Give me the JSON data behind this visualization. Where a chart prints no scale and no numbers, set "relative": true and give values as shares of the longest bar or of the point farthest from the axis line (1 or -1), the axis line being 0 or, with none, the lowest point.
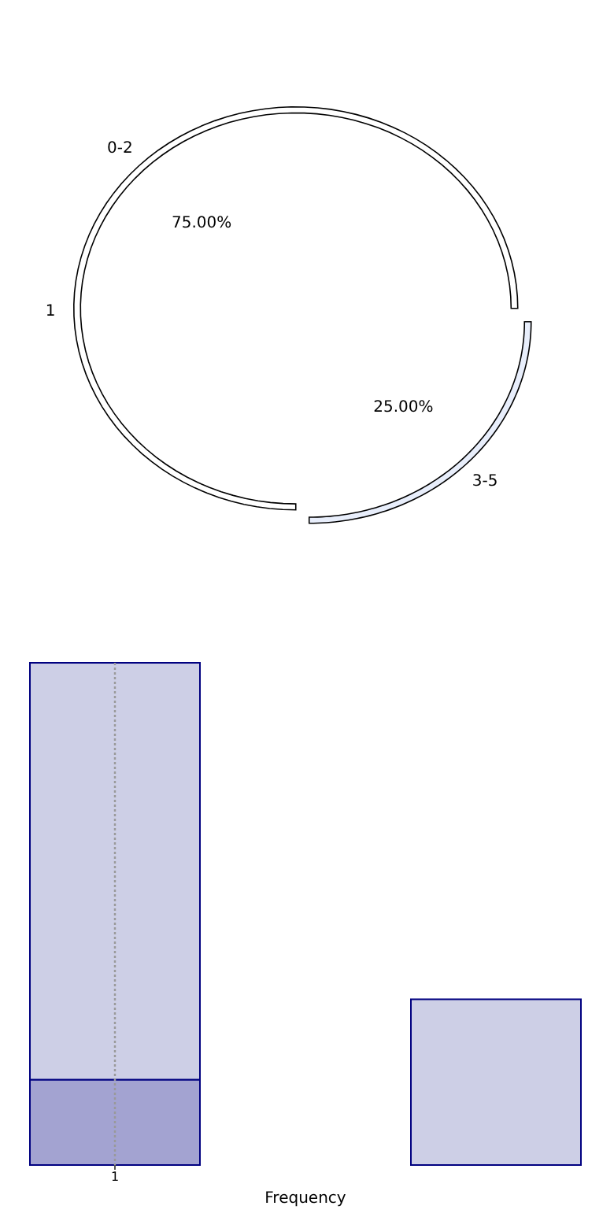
{
  "chart_data": [
    {
      "type": "donut",
      "ylabel": "1",
      "categories": [
        "0-2",
        "3-5"
      ],
      "values": [
        75,
        25
      ],
      "colors": [
        "#ffffff",
        "#e8eefb"
      ],
      "value_labels": [
        "75.00%",
        "25.00%"
      ]
    },
    {
      "type": "bar",
      "xlabel": "Frequency",
      "categories": [
        "1",
        null
      ],
      "relative": true,
      "stacked": true,
      "tick_labels": "x",
      "ref_lines": [
        {
          "axis": "x",
          "value": "1",
          "color": "#999999",
          "line_style": "dotted"
        }
      ],
      "series": [
        {
          "color": "#a3a3d1",
          "values": [
            0.17,
            null
          ]
        },
        {
          "color": "#cdcfe6",
          "values": [
            0.83,
            0.33
          ]
        }
      ]
    }
  ]
}
